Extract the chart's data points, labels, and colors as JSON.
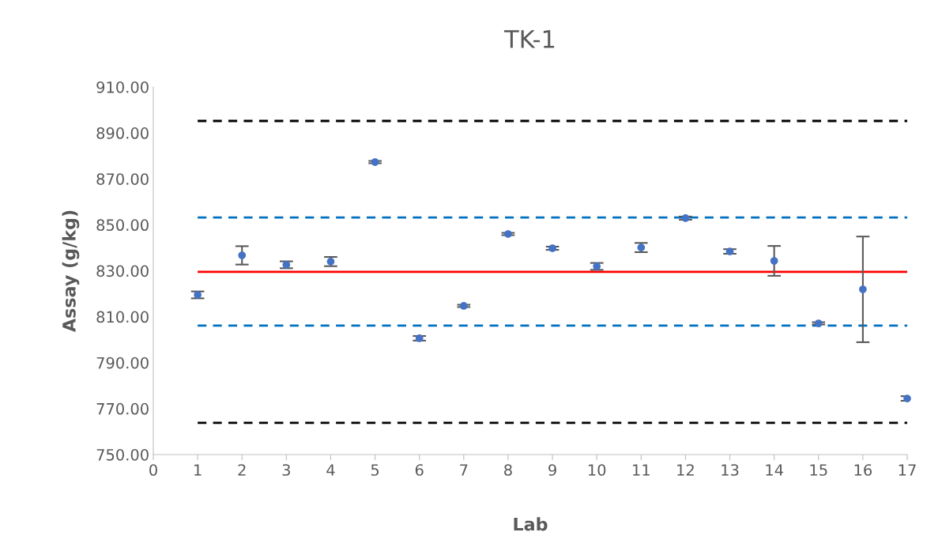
{
  "chart_data": {
    "type": "scatter",
    "title": "TK-1",
    "xlabel": "Lab",
    "ylabel": "Assay (g/kg)",
    "x": [
      1,
      2,
      3,
      4,
      5,
      6,
      7,
      8,
      9,
      10,
      11,
      12,
      13,
      14,
      15,
      16,
      17
    ],
    "series": [
      {
        "color": "#4472c4",
        "values": [
          819.5,
          836.7,
          832.6,
          834.0,
          877.3,
          800.6,
          814.7,
          846.0,
          839.8,
          831.9,
          840.1,
          852.9,
          838.4,
          834.3,
          807.1,
          821.9,
          774.4
        ],
        "errors": [
          1.5,
          4,
          1.5,
          2,
          0.5,
          1,
          0.5,
          0.5,
          0.7,
          1.5,
          2,
          0.7,
          1,
          6.5,
          0.5,
          23,
          1
        ]
      }
    ],
    "ref_lines": [
      {
        "axis": "y",
        "value": 895.2,
        "color": "#000000",
        "line_style": "dashed"
      },
      {
        "axis": "y",
        "value": 853.2,
        "color": "#0070c0",
        "line_style": "dashed"
      },
      {
        "axis": "y",
        "value": 829.5,
        "color": "#ff0000",
        "line_style": "solid"
      },
      {
        "axis": "y",
        "value": 806.1,
        "color": "#0070c0",
        "line_style": "dashed"
      },
      {
        "axis": "y",
        "value": 763.8,
        "color": "#000000",
        "line_style": "dashed"
      }
    ],
    "xlim": [
      0,
      17
    ],
    "xticks": [
      0,
      1,
      2,
      3,
      4,
      5,
      6,
      7,
      8,
      9,
      10,
      11,
      12,
      13,
      14,
      15,
      16,
      17
    ],
    "ylim": [
      750,
      910
    ],
    "yticks": [
      {
        "value": 750,
        "label": "750.00"
      },
      {
        "value": 770,
        "label": "770.00"
      },
      {
        "value": 790,
        "label": "790.00"
      },
      {
        "value": 810,
        "label": "810.00"
      },
      {
        "value": 830,
        "label": "830.00"
      },
      {
        "value": 850,
        "label": "850.00"
      },
      {
        "value": 870,
        "label": "870.00"
      },
      {
        "value": 890,
        "label": "890.00"
      },
      {
        "value": 910,
        "label": "910.00"
      }
    ],
    "grid": false,
    "legend": false,
    "marker": "circle"
  }
}
